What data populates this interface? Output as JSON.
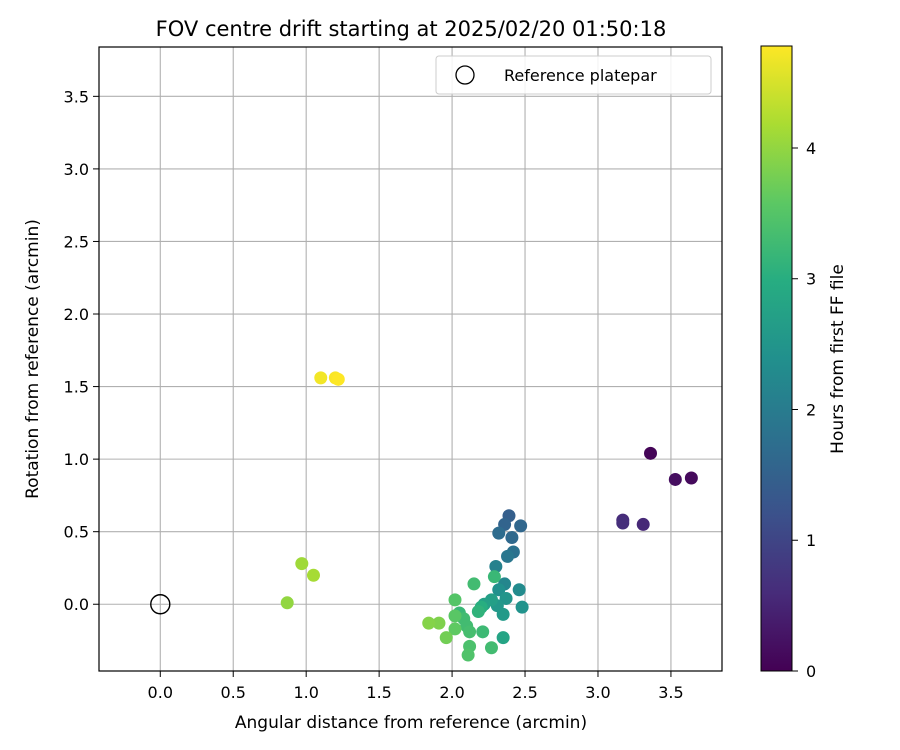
{
  "chart_data": {
    "type": "scatter",
    "title": "FOV centre drift starting at 2025/02/20 01:50:18",
    "xlabel": "Angular distance from reference (arcmin)",
    "ylabel": "Rotation from reference (arcmin)",
    "xlim": [
      -0.42,
      3.85
    ],
    "ylim": [
      -0.46,
      3.84
    ],
    "x_ticks": [
      0.0,
      0.5,
      1.0,
      1.5,
      2.0,
      2.5,
      3.0,
      3.5
    ],
    "y_ticks": [
      0.0,
      0.5,
      1.0,
      1.5,
      2.0,
      2.5,
      3.0,
      3.5
    ],
    "x_tick_labels": [
      "0.0",
      "0.5",
      "1.0",
      "1.5",
      "2.0",
      "2.5",
      "3.0",
      "3.5"
    ],
    "y_tick_labels": [
      "0.0",
      "0.5",
      "1.0",
      "1.5",
      "2.0",
      "2.5",
      "3.0",
      "3.5"
    ],
    "grid": true,
    "legend": {
      "placement": "top-right",
      "entries": [
        "Reference platepar"
      ]
    },
    "reference_point": {
      "name": "Reference platepar",
      "x": 0.0,
      "y": 0.0
    },
    "colorbar": {
      "label": "Hours from first FF file",
      "colormap": "viridis",
      "range": [
        0,
        4.78
      ],
      "ticks": [
        0,
        1,
        2,
        3,
        4
      ],
      "tick_labels": [
        "0",
        "1",
        "2",
        "3",
        "4"
      ]
    },
    "points": [
      {
        "x": 3.36,
        "y": 1.04,
        "c": 0.05
      },
      {
        "x": 3.64,
        "y": 0.87,
        "c": 0.12
      },
      {
        "x": 3.53,
        "y": 0.86,
        "c": 0.18
      },
      {
        "x": 3.31,
        "y": 0.55,
        "c": 0.55
      },
      {
        "x": 3.17,
        "y": 0.58,
        "c": 0.6
      },
      {
        "x": 3.17,
        "y": 0.56,
        "c": 0.65
      },
      {
        "x": 2.39,
        "y": 0.61,
        "c": 1.45
      },
      {
        "x": 2.36,
        "y": 0.55,
        "c": 1.55
      },
      {
        "x": 2.47,
        "y": 0.54,
        "c": 1.6
      },
      {
        "x": 2.32,
        "y": 0.49,
        "c": 1.7
      },
      {
        "x": 2.41,
        "y": 0.46,
        "c": 1.65
      },
      {
        "x": 2.42,
        "y": 0.36,
        "c": 1.8
      },
      {
        "x": 2.38,
        "y": 0.33,
        "c": 1.9
      },
      {
        "x": 2.3,
        "y": 0.26,
        "c": 2.1
      },
      {
        "x": 2.36,
        "y": 0.14,
        "c": 2.2
      },
      {
        "x": 2.46,
        "y": 0.1,
        "c": 2.3
      },
      {
        "x": 2.32,
        "y": 0.1,
        "c": 2.4
      },
      {
        "x": 2.37,
        "y": 0.04,
        "c": 2.5
      },
      {
        "x": 2.48,
        "y": -0.02,
        "c": 2.45
      },
      {
        "x": 2.31,
        "y": -0.01,
        "c": 2.55
      },
      {
        "x": 2.35,
        "y": -0.07,
        "c": 2.6
      },
      {
        "x": 2.27,
        "y": 0.03,
        "c": 2.7
      },
      {
        "x": 2.22,
        "y": 0.0,
        "c": 2.75
      },
      {
        "x": 2.35,
        "y": -0.23,
        "c": 2.8
      },
      {
        "x": 2.29,
        "y": 0.19,
        "c": 3.2
      },
      {
        "x": 2.15,
        "y": 0.14,
        "c": 3.3
      },
      {
        "x": 2.2,
        "y": -0.02,
        "c": 3.0
      },
      {
        "x": 2.18,
        "y": -0.05,
        "c": 3.1
      },
      {
        "x": 2.05,
        "y": -0.06,
        "c": 3.2
      },
      {
        "x": 2.08,
        "y": -0.1,
        "c": 3.3
      },
      {
        "x": 2.1,
        "y": -0.15,
        "c": 3.3
      },
      {
        "x": 2.21,
        "y": -0.19,
        "c": 3.25
      },
      {
        "x": 2.27,
        "y": -0.3,
        "c": 3.3
      },
      {
        "x": 2.12,
        "y": -0.19,
        "c": 3.35
      },
      {
        "x": 2.12,
        "y": -0.29,
        "c": 3.4
      },
      {
        "x": 2.11,
        "y": -0.35,
        "c": 3.45
      },
      {
        "x": 2.02,
        "y": 0.03,
        "c": 3.5
      },
      {
        "x": 2.02,
        "y": -0.08,
        "c": 3.55
      },
      {
        "x": 2.02,
        "y": -0.17,
        "c": 3.6
      },
      {
        "x": 1.96,
        "y": -0.23,
        "c": 3.75
      },
      {
        "x": 1.91,
        "y": -0.13,
        "c": 3.85
      },
      {
        "x": 1.84,
        "y": -0.13,
        "c": 3.9
      },
      {
        "x": 0.97,
        "y": 0.28,
        "c": 4.1
      },
      {
        "x": 1.05,
        "y": 0.2,
        "c": 4.15
      },
      {
        "x": 0.87,
        "y": 0.01,
        "c": 4.0
      },
      {
        "x": 1.1,
        "y": 1.56,
        "c": 4.7
      },
      {
        "x": 1.2,
        "y": 1.56,
        "c": 4.75
      },
      {
        "x": 1.22,
        "y": 1.55,
        "c": 4.78
      }
    ]
  }
}
